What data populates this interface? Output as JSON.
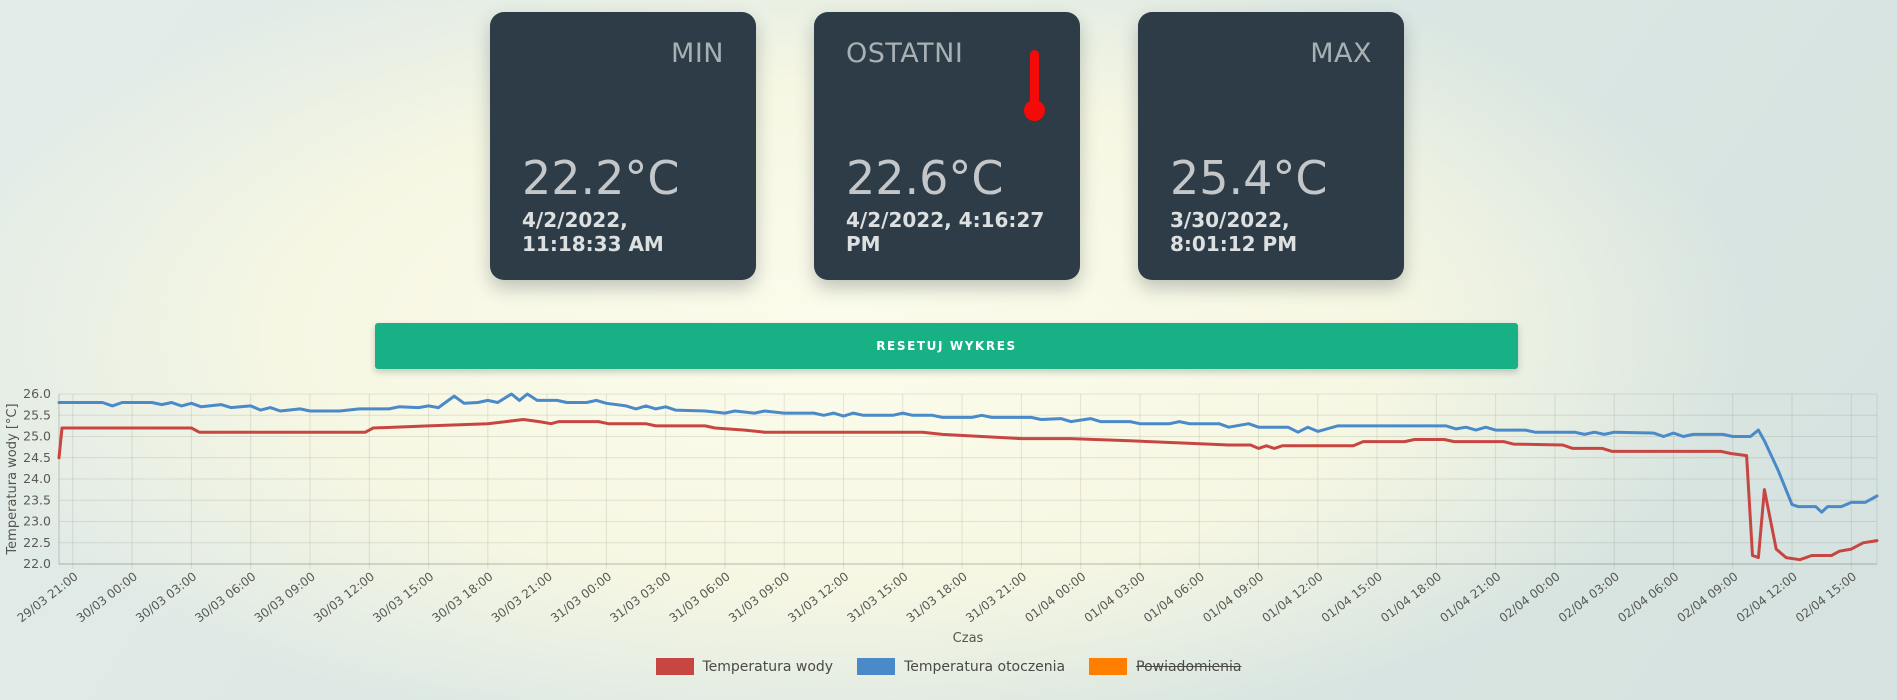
{
  "cards": {
    "min": {
      "title": "MIN",
      "value": "22.2°C",
      "timestamp": "4/2/2022, 11:18:33 AM"
    },
    "last": {
      "title": "OSTATNI",
      "value": "22.6°C",
      "timestamp": "4/2/2022, 4:16:27 PM",
      "icon": "thermometer-icon",
      "icon_color": "#f50a0a"
    },
    "max": {
      "title": "MAX",
      "value": "25.4°C",
      "timestamp": "3/30/2022, 8:01:12 PM"
    }
  },
  "button": {
    "label": "RESETUJ WYKRES",
    "color": "#18b185"
  },
  "chart_data": {
    "type": "line",
    "xlabel": "Czas",
    "ylabel": "Temperatura wody [°C]",
    "ylim": [
      22.0,
      26.0
    ],
    "y_tick_step": 0.5,
    "grid": true,
    "legend_position": "bottom",
    "x_unit": "hours since 29/03 21:00",
    "x_range_hours": [
      -0.7,
      91.3
    ],
    "x_tick_interval_hours": 3,
    "x_tick_labels": [
      "29/03 21:00",
      "30/03 00:00",
      "30/03 03:00",
      "30/03 06:00",
      "30/03 09:00",
      "30/03 12:00",
      "30/03 15:00",
      "30/03 18:00",
      "30/03 21:00",
      "31/03 00:00",
      "31/03 03:00",
      "31/03 06:00",
      "31/03 09:00",
      "31/03 12:00",
      "31/03 15:00",
      "31/03 18:00",
      "31/03 21:00",
      "01/04 00:00",
      "01/04 03:00",
      "01/04 06:00",
      "01/04 09:00",
      "01/04 12:00",
      "01/04 15:00",
      "01/04 18:00",
      "01/04 21:00",
      "02/04 00:00",
      "02/04 03:00",
      "02/04 06:00",
      "02/04 09:00",
      "02/04 12:00",
      "02/04 15:00"
    ],
    "series": [
      {
        "name": "Temperatura wody",
        "color": "#c74641",
        "hidden": false,
        "points": [
          [
            -0.7,
            24.5
          ],
          [
            -0.55,
            25.2
          ],
          [
            6,
            25.2
          ],
          [
            6.4,
            25.1
          ],
          [
            14.8,
            25.1
          ],
          [
            15.2,
            25.2
          ],
          [
            18,
            25.25
          ],
          [
            21,
            25.3
          ],
          [
            22.8,
            25.4
          ],
          [
            23.6,
            25.35
          ],
          [
            24.2,
            25.3
          ],
          [
            24.6,
            25.35
          ],
          [
            26.6,
            25.35
          ],
          [
            27.1,
            25.3
          ],
          [
            29,
            25.3
          ],
          [
            29.5,
            25.25
          ],
          [
            32,
            25.25
          ],
          [
            32.5,
            25.2
          ],
          [
            34,
            25.15
          ],
          [
            35,
            25.1
          ],
          [
            43,
            25.1
          ],
          [
            44,
            25.05
          ],
          [
            46,
            25.0
          ],
          [
            48,
            24.95
          ],
          [
            50.5,
            24.95
          ],
          [
            53.5,
            24.9
          ],
          [
            56,
            24.85
          ],
          [
            58.5,
            24.8
          ],
          [
            59.6,
            24.8
          ],
          [
            60,
            24.72
          ],
          [
            60.4,
            24.78
          ],
          [
            60.8,
            24.72
          ],
          [
            61.2,
            24.78
          ],
          [
            64.8,
            24.78
          ],
          [
            65.3,
            24.88
          ],
          [
            67.4,
            24.88
          ],
          [
            67.9,
            24.93
          ],
          [
            69.4,
            24.93
          ],
          [
            69.9,
            24.88
          ],
          [
            72.4,
            24.88
          ],
          [
            72.9,
            24.82
          ],
          [
            75.4,
            24.8
          ],
          [
            75.9,
            24.72
          ],
          [
            77.4,
            24.72
          ],
          [
            77.9,
            24.65
          ],
          [
            83.4,
            24.65
          ],
          [
            83.9,
            24.6
          ],
          [
            84.7,
            24.55
          ],
          [
            85.0,
            22.2
          ],
          [
            85.3,
            22.15
          ],
          [
            85.6,
            23.75
          ],
          [
            86.2,
            22.35
          ],
          [
            86.7,
            22.15
          ],
          [
            87.4,
            22.1
          ],
          [
            88,
            22.2
          ],
          [
            89,
            22.2
          ],
          [
            89.4,
            22.3
          ],
          [
            90,
            22.35
          ],
          [
            90.6,
            22.5
          ],
          [
            91.3,
            22.55
          ]
        ]
      },
      {
        "name": "Temperatura otoczenia",
        "color": "#4a8ac8",
        "hidden": false,
        "points": [
          [
            -0.7,
            25.8
          ],
          [
            1.5,
            25.8
          ],
          [
            2,
            25.72
          ],
          [
            2.5,
            25.8
          ],
          [
            4,
            25.8
          ],
          [
            4.5,
            25.75
          ],
          [
            5,
            25.8
          ],
          [
            5.5,
            25.72
          ],
          [
            6,
            25.78
          ],
          [
            6.5,
            25.7
          ],
          [
            7.5,
            25.75
          ],
          [
            8,
            25.68
          ],
          [
            9,
            25.72
          ],
          [
            9.5,
            25.62
          ],
          [
            10,
            25.68
          ],
          [
            10.5,
            25.6
          ],
          [
            11.5,
            25.65
          ],
          [
            12,
            25.6
          ],
          [
            13.5,
            25.6
          ],
          [
            14.5,
            25.65
          ],
          [
            16,
            25.65
          ],
          [
            16.5,
            25.7
          ],
          [
            17.5,
            25.68
          ],
          [
            18,
            25.72
          ],
          [
            18.5,
            25.68
          ],
          [
            19.3,
            25.95
          ],
          [
            19.8,
            25.78
          ],
          [
            20.5,
            25.8
          ],
          [
            21,
            25.85
          ],
          [
            21.5,
            25.8
          ],
          [
            22.2,
            26.0
          ],
          [
            22.6,
            25.85
          ],
          [
            23,
            26.0
          ],
          [
            23.5,
            25.85
          ],
          [
            24.5,
            25.85
          ],
          [
            25,
            25.8
          ],
          [
            26,
            25.8
          ],
          [
            26.5,
            25.85
          ],
          [
            27,
            25.78
          ],
          [
            28,
            25.72
          ],
          [
            28.5,
            25.65
          ],
          [
            29,
            25.72
          ],
          [
            29.5,
            25.65
          ],
          [
            30,
            25.7
          ],
          [
            30.5,
            25.62
          ],
          [
            32,
            25.6
          ],
          [
            33,
            25.55
          ],
          [
            33.5,
            25.6
          ],
          [
            34.5,
            25.55
          ],
          [
            35,
            25.6
          ],
          [
            36,
            25.55
          ],
          [
            37.5,
            25.55
          ],
          [
            38,
            25.5
          ],
          [
            38.5,
            25.55
          ],
          [
            39,
            25.48
          ],
          [
            39.5,
            25.55
          ],
          [
            40,
            25.5
          ],
          [
            41.5,
            25.5
          ],
          [
            42,
            25.55
          ],
          [
            42.5,
            25.5
          ],
          [
            43.5,
            25.5
          ],
          [
            44,
            25.45
          ],
          [
            45.5,
            25.45
          ],
          [
            46,
            25.5
          ],
          [
            46.5,
            25.45
          ],
          [
            48.5,
            25.45
          ],
          [
            49,
            25.4
          ],
          [
            50,
            25.42
          ],
          [
            50.5,
            25.35
          ],
          [
            51.5,
            25.42
          ],
          [
            52,
            25.35
          ],
          [
            53.5,
            25.35
          ],
          [
            54,
            25.3
          ],
          [
            55.5,
            25.3
          ],
          [
            56,
            25.35
          ],
          [
            56.5,
            25.3
          ],
          [
            58,
            25.3
          ],
          [
            58.5,
            25.22
          ],
          [
            59.5,
            25.3
          ],
          [
            60,
            25.22
          ],
          [
            61.5,
            25.22
          ],
          [
            62,
            25.1
          ],
          [
            62.5,
            25.22
          ],
          [
            63,
            25.12
          ],
          [
            64,
            25.25
          ],
          [
            66.5,
            25.25
          ],
          [
            69.5,
            25.25
          ],
          [
            70,
            25.18
          ],
          [
            70.5,
            25.22
          ],
          [
            71,
            25.15
          ],
          [
            71.5,
            25.22
          ],
          [
            72,
            25.15
          ],
          [
            73.5,
            25.15
          ],
          [
            74,
            25.1
          ],
          [
            76,
            25.1
          ],
          [
            76.5,
            25.05
          ],
          [
            77,
            25.1
          ],
          [
            77.5,
            25.05
          ],
          [
            78,
            25.1
          ],
          [
            80,
            25.08
          ],
          [
            80.5,
            25.0
          ],
          [
            81,
            25.08
          ],
          [
            81.5,
            25.0
          ],
          [
            82,
            25.05
          ],
          [
            83.5,
            25.05
          ],
          [
            84,
            25.0
          ],
          [
            84.9,
            25.0
          ],
          [
            85.3,
            25.15
          ],
          [
            85.6,
            24.9
          ],
          [
            86.3,
            24.2
          ],
          [
            87,
            23.4
          ],
          [
            87.3,
            23.35
          ],
          [
            88.2,
            23.35
          ],
          [
            88.5,
            23.22
          ],
          [
            88.8,
            23.35
          ],
          [
            89.5,
            23.35
          ],
          [
            90,
            23.45
          ],
          [
            90.7,
            23.45
          ],
          [
            91.3,
            23.6
          ]
        ]
      },
      {
        "name": "Powiadomienia",
        "color": "#ff7e00",
        "hidden": true,
        "points": []
      }
    ]
  }
}
